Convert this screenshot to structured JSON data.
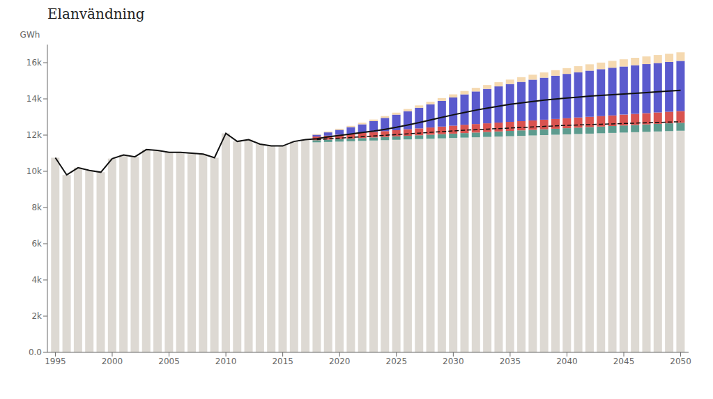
{
  "chart_data": {
    "type": "bar",
    "title": "Elanvändning",
    "y_label": "GWh",
    "stacked": true,
    "grid": false,
    "x": [
      1995,
      1996,
      1997,
      1998,
      1999,
      2000,
      2001,
      2002,
      2003,
      2004,
      2005,
      2006,
      2007,
      2008,
      2009,
      2010,
      2011,
      2012,
      2013,
      2014,
      2015,
      2016,
      2017,
      2018,
      2019,
      2020,
      2021,
      2022,
      2023,
      2024,
      2025,
      2026,
      2027,
      2028,
      2029,
      2030,
      2031,
      2032,
      2033,
      2034,
      2035,
      2036,
      2037,
      2038,
      2039,
      2040,
      2041,
      2042,
      2043,
      2044,
      2045,
      2046,
      2047,
      2048,
      2049,
      2050
    ],
    "xlim": [
      1994.3,
      2050.7
    ],
    "xticks": [
      1995,
      2000,
      2005,
      2010,
      2015,
      2020,
      2025,
      2030,
      2035,
      2040,
      2045,
      2050
    ],
    "ylim": [
      0,
      17000
    ],
    "yticks": [
      {
        "value": 0,
        "label": "0.0"
      },
      {
        "value": 2000,
        "label": "2k"
      },
      {
        "value": 4000,
        "label": "4k"
      },
      {
        "value": 6000,
        "label": "6k"
      },
      {
        "value": 8000,
        "label": "8k"
      },
      {
        "value": 10000,
        "label": "10k"
      },
      {
        "value": 12000,
        "label": "12k"
      },
      {
        "value": 14000,
        "label": "14k"
      },
      {
        "value": 16000,
        "label": "16k"
      }
    ],
    "series": [
      {
        "type": "bar",
        "color": "#ddd9d3",
        "values": [
          10750,
          9800,
          10200,
          10050,
          9950,
          10700,
          10900,
          10800,
          11200,
          11150,
          11050,
          11050,
          11000,
          10950,
          10750,
          12100,
          11650,
          11750,
          11500,
          11400,
          11400,
          11650,
          11750,
          11600,
          11620,
          11640,
          11660,
          11680,
          11700,
          11720,
          11740,
          11760,
          11780,
          11800,
          11820,
          11840,
          11860,
          11880,
          11900,
          11920,
          11940,
          11960,
          11980,
          12000,
          12020,
          12040,
          12060,
          12080,
          12100,
          12120,
          12140,
          12160,
          12180,
          12200,
          12220,
          12240
        ]
      },
      {
        "type": "bar",
        "color": "#5d9b8e",
        "values": [
          null,
          null,
          null,
          null,
          null,
          null,
          null,
          null,
          null,
          null,
          null,
          null,
          null,
          null,
          null,
          null,
          null,
          null,
          null,
          null,
          null,
          null,
          null,
          120,
          130,
          140,
          150,
          160,
          170,
          180,
          190,
          200,
          210,
          220,
          230,
          240,
          250,
          260,
          270,
          280,
          290,
          300,
          310,
          320,
          330,
          340,
          350,
          360,
          370,
          380,
          390,
          400,
          410,
          420,
          430,
          440
        ]
      },
      {
        "type": "bar",
        "color": "#d9534f",
        "values": [
          null,
          null,
          null,
          null,
          null,
          null,
          null,
          null,
          null,
          null,
          null,
          null,
          null,
          null,
          null,
          null,
          null,
          null,
          null,
          null,
          null,
          null,
          null,
          200,
          220,
          240,
          260,
          280,
          300,
          320,
          340,
          360,
          380,
          400,
          420,
          440,
          460,
          470,
          480,
          490,
          500,
          510,
          520,
          530,
          540,
          550,
          560,
          570,
          580,
          590,
          600,
          610,
          620,
          630,
          640,
          650
        ]
      },
      {
        "type": "bar",
        "color": "#5a5acd",
        "values": [
          null,
          null,
          null,
          null,
          null,
          null,
          null,
          null,
          null,
          null,
          null,
          null,
          null,
          null,
          null,
          null,
          null,
          null,
          null,
          null,
          null,
          null,
          null,
          100,
          180,
          270,
          370,
          480,
          600,
          730,
          860,
          1000,
          1140,
          1280,
          1420,
          1560,
          1680,
          1800,
          1900,
          2000,
          2090,
          2170,
          2250,
          2320,
          2390,
          2450,
          2500,
          2550,
          2590,
          2630,
          2660,
          2690,
          2710,
          2730,
          2750,
          2770
        ]
      },
      {
        "type": "bar",
        "color": "#f5d9b0",
        "values": [
          null,
          null,
          null,
          null,
          null,
          null,
          null,
          null,
          null,
          null,
          null,
          null,
          null,
          null,
          null,
          null,
          null,
          null,
          null,
          null,
          null,
          null,
          null,
          40,
          50,
          60,
          70,
          80,
          90,
          100,
          110,
          120,
          130,
          140,
          155,
          170,
          185,
          200,
          215,
          230,
          245,
          260,
          275,
          290,
          305,
          320,
          335,
          350,
          365,
          380,
          395,
          410,
          425,
          440,
          455,
          470
        ]
      },
      {
        "type": "line",
        "line_style": "solid",
        "color": "#111111",
        "values": [
          10750,
          9800,
          10200,
          10050,
          9950,
          10700,
          10900,
          10800,
          11200,
          11150,
          11050,
          11050,
          11000,
          10950,
          10750,
          12100,
          11650,
          11750,
          11500,
          11400,
          11400,
          11650,
          11750,
          11800,
          11900,
          11980,
          12060,
          12140,
          12220,
          12320,
          12430,
          12560,
          12690,
          12840,
          12980,
          13120,
          13250,
          13380,
          13490,
          13600,
          13700,
          13780,
          13860,
          13930,
          13990,
          14050,
          14100,
          14150,
          14190,
          14230,
          14270,
          14310,
          14350,
          14390,
          14430,
          14470
        ]
      },
      {
        "type": "line",
        "line_style": "dashed",
        "color": "#111111",
        "values": [
          null,
          null,
          null,
          null,
          null,
          null,
          null,
          null,
          null,
          null,
          null,
          null,
          null,
          null,
          null,
          null,
          null,
          null,
          null,
          null,
          null,
          null,
          null,
          11750,
          11790,
          11830,
          11870,
          11910,
          11950,
          11990,
          12030,
          12070,
          12110,
          12150,
          12190,
          12230,
          12270,
          12300,
          12330,
          12360,
          12390,
          12420,
          12450,
          12480,
          12510,
          12540,
          12560,
          12580,
          12600,
          12620,
          12640,
          12660,
          12680,
          12700,
          12720,
          12740
        ]
      }
    ]
  }
}
